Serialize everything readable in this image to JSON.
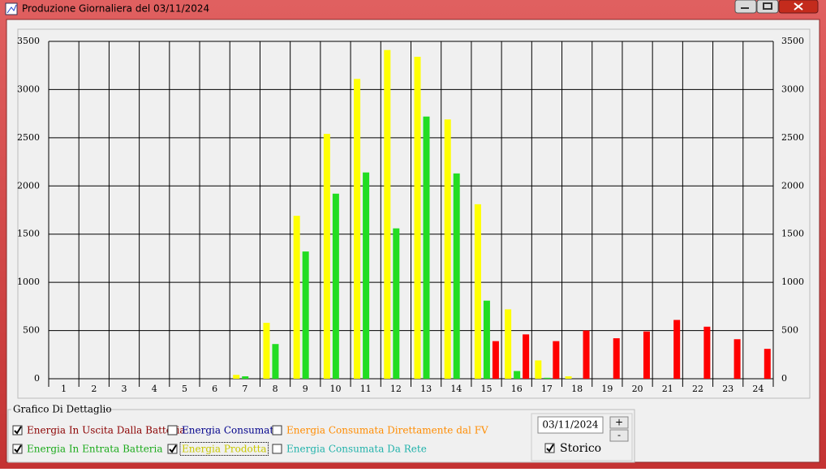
{
  "window": {
    "title": "Produzione Giornaliera del 03/11/2024"
  },
  "chart_data": {
    "type": "bar",
    "categories": [
      "1",
      "2",
      "3",
      "4",
      "5",
      "6",
      "7",
      "8",
      "9",
      "10",
      "11",
      "12",
      "13",
      "14",
      "15",
      "16",
      "17",
      "18",
      "19",
      "20",
      "21",
      "22",
      "23",
      "24"
    ],
    "series": [
      {
        "name": "Energia Prodotta",
        "color": "#ffff00",
        "label_color": "#c8c800",
        "checked": true,
        "values": [
          0,
          0,
          0,
          0,
          0,
          0,
          40,
          580,
          1690,
          2540,
          3110,
          3410,
          3340,
          2690,
          1810,
          720,
          190,
          25,
          0,
          0,
          0,
          0,
          0,
          0
        ]
      },
      {
        "name": "Energia In Entrata Batteria",
        "color": "#22dd22",
        "label_color": "#1aaa1a",
        "checked": true,
        "values": [
          0,
          0,
          0,
          0,
          0,
          0,
          25,
          360,
          1320,
          1920,
          2140,
          1560,
          2720,
          2130,
          810,
          80,
          10,
          0,
          0,
          0,
          0,
          0,
          0,
          0
        ]
      },
      {
        "name": "Energia In Uscita Dalla Batteria",
        "color": "#ff0000",
        "label_color": "#8b0000",
        "checked": true,
        "values": [
          0,
          0,
          0,
          0,
          0,
          0,
          0,
          0,
          0,
          0,
          0,
          0,
          0,
          0,
          390,
          460,
          390,
          500,
          420,
          490,
          610,
          540,
          410,
          310
        ]
      }
    ],
    "ylim": [
      0,
      3500
    ],
    "yticks": [
      0,
      500,
      1000,
      1500,
      2000,
      2500,
      3000,
      3500
    ],
    "grid": true
  },
  "detail_group": {
    "title": "Grafico Di Dettaglio",
    "other_checkboxes": [
      {
        "label": "Energia Consumata",
        "color": "#00008b",
        "checked": false
      },
      {
        "label": "Energia Consumata Direttamente dal FV",
        "color": "#ff8c00",
        "checked": false
      },
      {
        "label": "Energia Consumata Da Rete",
        "color": "#20b2aa",
        "checked": false
      }
    ]
  },
  "date_box": {
    "value": "03/11/2024",
    "plus": "+",
    "minus": "-",
    "storico": {
      "label": "Storico",
      "checked": true
    }
  }
}
